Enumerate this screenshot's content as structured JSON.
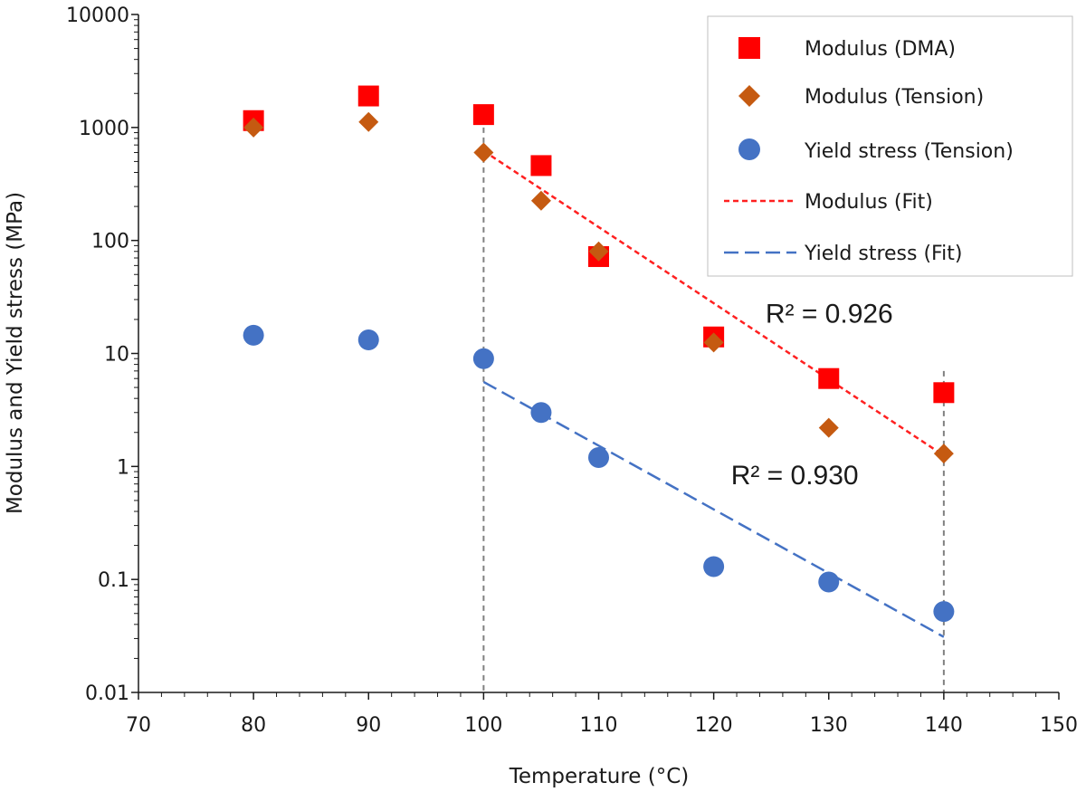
{
  "chart_data": {
    "type": "scatter",
    "title": "",
    "xlabel": "Temperature (°C)",
    "ylabel": "Modulus and Yield stress (MPa)",
    "xlim": [
      70,
      150
    ],
    "ylim": [
      0.01,
      10000
    ],
    "yscale": "log",
    "xticks": [
      70,
      80,
      90,
      100,
      110,
      120,
      130,
      140,
      150
    ],
    "xtick_labels": [
      "70",
      "80",
      "90",
      "100",
      "110",
      "120",
      "130",
      "140",
      "150"
    ],
    "yticks": [
      0.01,
      0.1,
      1,
      10,
      100,
      1000,
      10000
    ],
    "ytick_labels": [
      "0.01",
      "0.1",
      "1",
      "10",
      "100",
      "1000",
      "10000"
    ],
    "grid": false,
    "legend_position": "top-right",
    "series": [
      {
        "name": "Modulus (DMA)",
        "kind": "scatter",
        "marker": "square",
        "color": "#ff0000",
        "x": [
          80,
          90,
          100,
          105,
          110,
          120,
          130,
          140
        ],
        "y": [
          1150,
          1900,
          1300,
          460,
          72,
          14,
          6,
          4.5
        ]
      },
      {
        "name": "Modulus (Tension)",
        "kind": "scatter",
        "marker": "diamond",
        "color": "#c55a11",
        "x": [
          80,
          90,
          100,
          105,
          110,
          120,
          130,
          140
        ],
        "y": [
          1000,
          1120,
          600,
          225,
          80,
          12.5,
          2.2,
          1.3
        ]
      },
      {
        "name": "Yield stress (Tension)",
        "kind": "scatter",
        "marker": "circle",
        "color": "#4472c4",
        "x": [
          80,
          90,
          100,
          105,
          110,
          120,
          130,
          140
        ],
        "y": [
          14.5,
          13.2,
          9,
          3,
          1.2,
          0.13,
          0.095,
          0.052
        ]
      },
      {
        "name": "Modulus (Fit)",
        "kind": "line",
        "dash": "short",
        "color": "#ff2020",
        "x": [
          100,
          140
        ],
        "y": [
          620,
          1.25
        ]
      },
      {
        "name": "Yield stress (Fit)",
        "kind": "line",
        "dash": "long",
        "color": "#4472c4",
        "x": [
          100,
          140
        ],
        "y": [
          5.6,
          0.031
        ]
      }
    ],
    "reference_lines": [
      {
        "x": 100,
        "y_top": 1500,
        "color": "#808080"
      },
      {
        "x": 140,
        "y_top": 7,
        "color": "#808080"
      }
    ],
    "annotations": [
      {
        "text": "R² = 0.926",
        "x": 124.5,
        "y": 23
      },
      {
        "text": "R² = 0.930",
        "x": 121.5,
        "y": 0.85
      }
    ]
  }
}
